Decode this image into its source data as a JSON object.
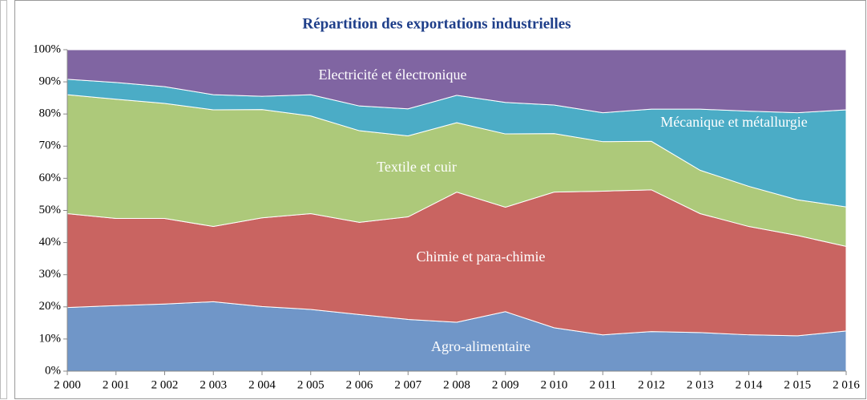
{
  "chart_data": {
    "type": "stacked_area",
    "title": "Répartition des exportations industrielles",
    "categories": [
      "2 000",
      "2 001",
      "2 002",
      "2 003",
      "2 004",
      "2 005",
      "2 006",
      "2 007",
      "2 008",
      "2 009",
      "2 010",
      "2 011",
      "2 012",
      "2 013",
      "2 014",
      "2 015",
      "2 016"
    ],
    "series": [
      {
        "name": "Agro-alimentaire",
        "color": "#7096c8",
        "values": [
          19.8,
          20.4,
          20.9,
          21.6,
          20.1,
          19.2,
          17.6,
          16.1,
          15.2,
          18.5,
          13.5,
          11.3,
          12.3,
          12.0,
          11.3,
          11.0,
          12.5
        ]
      },
      {
        "name": "Chimie et para-chimie",
        "color": "#c96461",
        "values": [
          29.2,
          27.1,
          26.6,
          23.4,
          27.6,
          29.8,
          28.7,
          31.9,
          40.5,
          32.5,
          42.2,
          44.7,
          44.1,
          37.0,
          33.7,
          31.2,
          26.3
        ]
      },
      {
        "name": "Textile et cuir",
        "color": "#adc97a",
        "values": [
          37.0,
          37.1,
          35.8,
          36.3,
          33.7,
          30.4,
          28.5,
          25.2,
          21.6,
          22.8,
          18.2,
          15.4,
          15.1,
          13.5,
          12.5,
          11.1,
          12.3
        ]
      },
      {
        "name": "Mécanique et métallurgie",
        "color": "#4bacc6",
        "values": [
          4.8,
          5.2,
          5.2,
          4.7,
          4.1,
          6.6,
          7.7,
          8.4,
          8.5,
          9.8,
          8.9,
          9.0,
          10.0,
          19.0,
          23.4,
          27.1,
          30.2
        ]
      },
      {
        "name": "Electricité et électronique",
        "color": "#8065a2",
        "values": [
          9.2,
          10.2,
          11.5,
          14.0,
          14.5,
          14.0,
          17.5,
          18.4,
          14.2,
          16.4,
          17.2,
          19.6,
          18.5,
          18.5,
          19.1,
          19.6,
          18.7
        ]
      }
    ],
    "ylim": [
      0,
      100
    ],
    "yticks": [
      {
        "value": 0,
        "label": "0%"
      },
      {
        "value": 10,
        "label": "10%"
      },
      {
        "value": 20,
        "label": "20%"
      },
      {
        "value": 30,
        "label": "30%"
      },
      {
        "value": 40,
        "label": "40%"
      },
      {
        "value": 50,
        "label": "50%"
      },
      {
        "value": 60,
        "label": "60%"
      },
      {
        "value": 70,
        "label": "70%"
      },
      {
        "value": 80,
        "label": "80%"
      },
      {
        "value": 90,
        "label": "90%"
      },
      {
        "value": 100,
        "label": "100%"
      }
    ]
  }
}
